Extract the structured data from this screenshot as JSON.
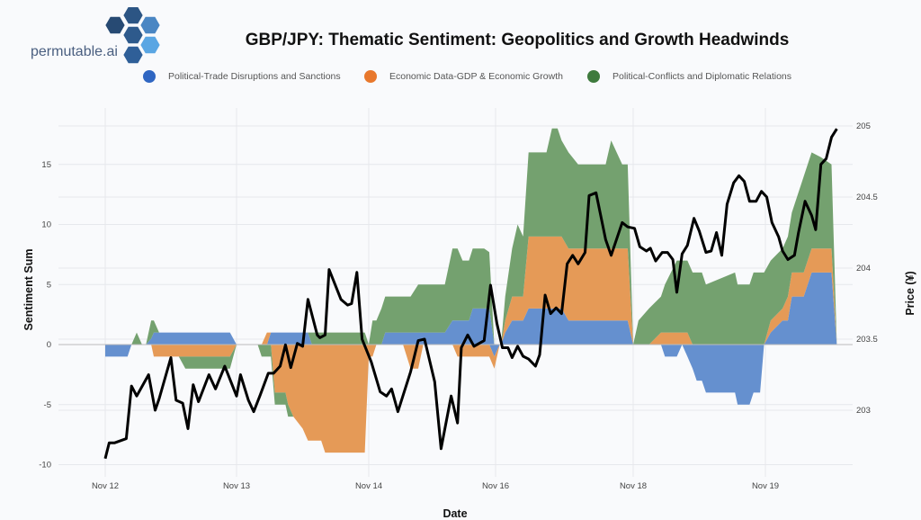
{
  "logo": {
    "text": "permutable.ai"
  },
  "chart_data": {
    "type": "area",
    "title": "GBP/JPY:  Thematic Sentiment: Geopolitics and Growth Headwinds",
    "xlabel": "Date",
    "ylabel": "Sentiment Sum",
    "y2label": "Price (¥)",
    "legend_position": "top",
    "grid": true,
    "x_ticks": [
      "Nov 12",
      "Nov 13",
      "Nov 14",
      "Nov 16",
      "Nov 18",
      "Nov 19"
    ],
    "y_ticks": [
      15,
      10,
      5,
      0,
      -5,
      -10
    ],
    "y2_ticks": [
      205,
      204.5,
      204,
      203.5,
      203
    ],
    "ylim": [
      -11,
      19.8
    ],
    "y2lim": [
      202.53,
      205.13
    ],
    "x_note": "x values expressed in tick positions (0 = Nov 12 ... 5 = Nov 19)",
    "area_x": [
      0,
      0.17,
      0.2,
      0.24,
      0.28,
      0.31,
      0.35,
      0.37,
      0.41,
      0.56,
      0.61,
      0.95,
      1.0,
      1.16,
      1.19,
      1.23,
      1.26,
      1.29,
      1.37,
      1.39,
      1.43,
      1.5,
      1.54,
      1.57,
      1.64,
      1.67,
      1.97,
      2.0,
      2.03,
      2.06,
      2.1,
      2.13,
      2.27,
      2.33,
      2.39,
      2.43,
      2.6,
      2.66,
      2.7,
      2.74,
      2.79,
      2.82,
      2.91,
      2.95,
      2.99,
      3.03,
      3.04,
      3.07,
      3.12,
      3.16,
      3.2,
      3.24,
      3.37,
      3.41,
      3.45,
      3.48,
      3.53,
      3.6,
      3.8,
      3.84,
      3.92,
      3.96,
      4.0,
      4.04,
      4.12,
      4.21,
      4.24,
      4.33,
      4.37,
      4.41,
      4.45,
      4.48,
      4.52,
      4.55,
      4.77,
      4.79,
      4.88,
      4.91,
      4.96,
      4.99,
      5.04,
      5.13,
      5.17,
      5.2,
      5.29,
      5.35,
      5.42,
      5.5,
      5.54
    ],
    "series": [
      {
        "name": "Political-Trade Disruptions and Sanctions",
        "color": "#6590cf",
        "legend_color": "#2f66c2",
        "values": [
          -1,
          -1,
          0,
          0,
          0,
          0,
          0.5,
          1,
          1,
          1,
          1,
          1,
          0,
          0,
          0,
          0,
          1,
          1,
          1,
          1,
          1,
          1,
          1,
          0,
          0,
          0,
          0,
          0,
          0,
          0,
          0,
          1,
          1,
          1,
          1,
          1,
          1,
          2,
          2,
          2,
          2,
          3,
          3,
          3,
          -1,
          0,
          0,
          1,
          2,
          2,
          2,
          3,
          3,
          3,
          3,
          3,
          2,
          2,
          2,
          2,
          2,
          2,
          0,
          0,
          0,
          0,
          -1,
          -1,
          0,
          -1,
          -2,
          -3,
          -3,
          -4,
          -4,
          -5,
          -5,
          -4,
          -4,
          0,
          1,
          2,
          2,
          4,
          4,
          6,
          6,
          6,
          0
        ]
      },
      {
        "name": "Economic Data-GDP & Economic Growth",
        "color": "#e59a57",
        "legend_color": "#e8782c",
        "values": [
          0,
          0,
          0,
          0,
          0,
          0,
          0,
          -1,
          -1,
          -1,
          -1,
          -1,
          0,
          0,
          0,
          1,
          0,
          -4,
          -4,
          -5,
          -6,
          -7,
          -8,
          -8,
          -8,
          -9,
          -9,
          -1,
          -1,
          0,
          0,
          0,
          0,
          -2,
          -2,
          0,
          0,
          0,
          -1,
          -1,
          -1,
          -1,
          -1,
          -1,
          -1,
          0,
          0,
          1,
          2,
          2,
          2,
          6,
          6,
          6,
          6,
          6,
          6,
          6,
          6,
          6,
          6,
          6,
          0,
          0,
          0,
          1,
          1,
          1,
          1,
          1,
          0,
          0,
          0,
          0,
          0,
          0,
          0,
          0,
          0,
          0,
          1,
          1,
          2,
          2,
          2,
          2,
          2,
          2,
          0
        ]
      },
      {
        "name": "Political-Conflicts and Diplomatic Relations",
        "color": "#74a16f",
        "legend_color": "#3e7a3d",
        "values": [
          0,
          0,
          0,
          1,
          0,
          0,
          1.5,
          1,
          0,
          0,
          -1,
          -1,
          0,
          0,
          -1,
          -1,
          -1,
          -1,
          -1,
          -1,
          0,
          0,
          0,
          1,
          1,
          1,
          1,
          0,
          2,
          2,
          3,
          3,
          3,
          3,
          4,
          4,
          4,
          6,
          6,
          5,
          5,
          5,
          5,
          4.7,
          0,
          0,
          0,
          2,
          4,
          6,
          5,
          7,
          7,
          9,
          9,
          8,
          8,
          7,
          7,
          9,
          7,
          7,
          0,
          2,
          3,
          3,
          4,
          6,
          6,
          6,
          6,
          6,
          6,
          5,
          6,
          5,
          5,
          6,
          6,
          6,
          5,
          5,
          5,
          5,
          8,
          8,
          7.6,
          7,
          0
        ]
      }
    ],
    "price": {
      "name": "GBP/JPY price",
      "color": "#000000",
      "x": [
        0,
        0.03,
        0.07,
        0.16,
        0.2,
        0.24,
        0.33,
        0.38,
        0.41,
        0.5,
        0.54,
        0.59,
        0.63,
        0.67,
        0.71,
        0.79,
        0.84,
        0.91,
        1.0,
        1.03,
        1.09,
        1.13,
        1.18,
        1.24,
        1.28,
        1.33,
        1.37,
        1.41,
        1.46,
        1.5,
        1.54,
        1.61,
        1.63,
        1.67,
        1.7,
        1.79,
        1.84,
        1.87,
        1.91,
        1.95,
        2.02,
        2.09,
        2.14,
        2.18,
        2.23,
        2.33,
        2.39,
        2.44,
        2.52,
        2.57,
        2.65,
        2.7,
        2.73,
        2.78,
        2.83,
        2.91,
        2.96,
        3.01,
        3.05,
        3.09,
        3.12,
        3.16,
        3.2,
        3.24,
        3.29,
        3.32,
        3.36,
        3.4,
        3.44,
        3.48,
        3.52,
        3.56,
        3.6,
        3.65,
        3.68,
        3.73,
        3.8,
        3.84,
        3.92,
        3.96,
        4.01,
        4.05,
        4.1,
        4.13,
        4.17,
        4.22,
        4.26,
        4.3,
        4.33,
        4.37,
        4.41,
        4.46,
        4.5,
        4.55,
        4.59,
        4.63,
        4.67,
        4.71,
        4.76,
        4.8,
        4.84,
        4.88,
        4.93,
        4.97,
        5.01,
        5.05,
        5.1,
        5.13,
        5.17,
        5.22,
        5.25,
        5.3,
        5.35,
        5.38,
        5.42,
        5.46,
        5.5,
        5.54
      ],
      "y": [
        202.66,
        202.77,
        202.77,
        202.8,
        203.17,
        203.1,
        203.25,
        203.0,
        203.08,
        203.37,
        203.07,
        203.05,
        202.87,
        203.18,
        203.06,
        203.25,
        203.15,
        203.31,
        203.1,
        203.25,
        203.07,
        202.99,
        203.11,
        203.26,
        203.26,
        203.31,
        203.46,
        203.3,
        203.47,
        203.45,
        203.78,
        203.53,
        203.51,
        203.53,
        203.99,
        203.78,
        203.74,
        203.75,
        203.97,
        203.5,
        203.34,
        203.13,
        203.1,
        203.15,
        202.99,
        203.27,
        203.49,
        203.5,
        203.2,
        202.73,
        203.1,
        202.91,
        203.44,
        203.53,
        203.45,
        203.49,
        203.88,
        203.61,
        203.44,
        203.44,
        203.37,
        203.45,
        203.38,
        203.36,
        203.31,
        203.39,
        203.81,
        203.68,
        203.72,
        203.68,
        204.03,
        204.09,
        204.03,
        204.11,
        204.51,
        204.53,
        204.2,
        204.09,
        204.32,
        204.29,
        204.28,
        204.15,
        204.12,
        204.14,
        204.05,
        204.11,
        204.11,
        204.06,
        203.83,
        204.1,
        204.16,
        204.35,
        204.26,
        204.11,
        204.12,
        204.25,
        204.09,
        204.45,
        204.6,
        204.65,
        204.61,
        204.47,
        204.47,
        204.54,
        204.5,
        204.32,
        204.22,
        204.12,
        204.06,
        204.09,
        204.25,
        204.47,
        204.37,
        204.27,
        204.73,
        204.77,
        204.92,
        204.98
      ]
    }
  }
}
